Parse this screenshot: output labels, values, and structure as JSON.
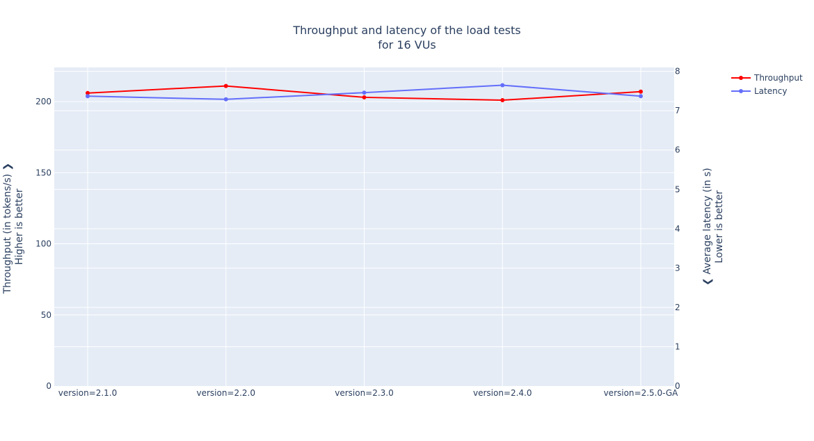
{
  "chart_data": {
    "type": "line",
    "title": "Throughput and latency of the load tests",
    "subtitle": "for 16 VUs",
    "categories": [
      "version=2.1.0",
      "version=2.2.0",
      "version=2.3.0",
      "version=2.4.0",
      "version=2.5.0-GA"
    ],
    "ylabel": "Throughput (in tokens/s) ❯",
    "ylabel2": "Higher is better",
    "y2label": "❮ Average latency (in s)",
    "y2label2": "Lower is better",
    "ylim": [
      0,
      224
    ],
    "y2lim": [
      0,
      8.1
    ],
    "yticks": [
      0,
      50,
      100,
      150,
      200
    ],
    "y2ticks": [
      0,
      1,
      2,
      3,
      4,
      5,
      6,
      7,
      8
    ],
    "grid": true,
    "legend_position": "top-right",
    "series": [
      {
        "name": "Throughput",
        "axis": "left",
        "color": "#ff0000",
        "values": [
          206,
          211,
          203,
          201,
          207
        ]
      },
      {
        "name": "Latency",
        "axis": "right",
        "color": "#636efa",
        "values": [
          7.37,
          7.29,
          7.46,
          7.65,
          7.37
        ]
      }
    ]
  },
  "colors": {
    "plot_bg": "#e5ecf6",
    "grid": "#ffffff",
    "text": "#2a3f5f"
  }
}
